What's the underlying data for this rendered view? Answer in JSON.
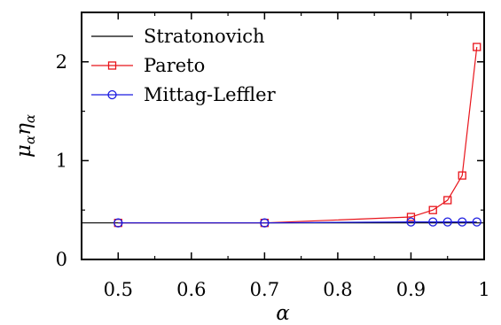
{
  "chart_data": {
    "type": "line",
    "xlabel": "α",
    "ylabel": "μαηα",
    "ylabel_parts": [
      "μ",
      "α",
      "η",
      "α"
    ],
    "xlim": [
      0.45,
      1.0
    ],
    "ylim": [
      0,
      2.5
    ],
    "x_ticks": [
      0.5,
      0.6,
      0.7,
      0.8,
      0.9,
      1.0
    ],
    "x_tick_labels": [
      "0.5",
      "0.6",
      "0.7",
      "0.8",
      "0.9",
      "1"
    ],
    "y_ticks": [
      0,
      1,
      2
    ],
    "y_tick_labels": [
      "0",
      "1",
      "2"
    ],
    "grid": false,
    "legend_position": "top-left",
    "series": [
      {
        "name": "Stratonovich",
        "color": "#000000",
        "marker": "none",
        "x": [
          0.45,
          1.0
        ],
        "y": [
          0.37,
          0.37
        ]
      },
      {
        "name": "Pareto",
        "color": "#e8141b",
        "marker": "square",
        "x": [
          0.5,
          0.7,
          0.9,
          0.93,
          0.95,
          0.97,
          0.99
        ],
        "y": [
          0.37,
          0.37,
          0.43,
          0.5,
          0.6,
          0.85,
          2.15
        ]
      },
      {
        "name": "Mittag-Leffler",
        "color": "#1a1ae0",
        "marker": "circle",
        "x": [
          0.5,
          0.7,
          0.9,
          0.93,
          0.95,
          0.97,
          0.99
        ],
        "y": [
          0.37,
          0.37,
          0.38,
          0.38,
          0.38,
          0.38,
          0.38
        ]
      }
    ]
  }
}
